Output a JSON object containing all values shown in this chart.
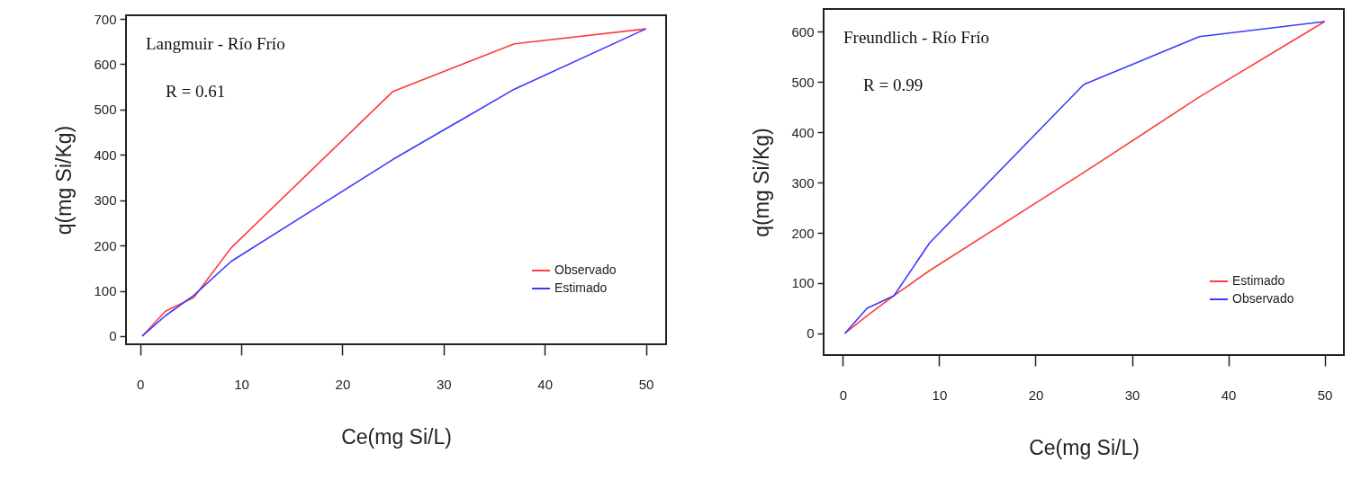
{
  "chart_data": [
    {
      "type": "line",
      "xlabel": "Ce(mg Si/L)",
      "ylabel": "q(mg Si/Kg)",
      "annotations": [
        "Langmuir - Río Frío",
        "R = 0.61"
      ],
      "x": [
        0.2,
        2.5,
        5.3,
        9,
        25,
        37,
        50
      ],
      "series": [
        {
          "name": "Observado",
          "color": "#ff3b3b",
          "values": [
            0,
            55,
            85,
            195,
            540,
            645,
            678
          ]
        },
        {
          "name": "Estimado",
          "color": "#3b3bff",
          "values": [
            0,
            45,
            90,
            165,
            390,
            545,
            678
          ]
        }
      ],
      "xlim": [
        -1.4,
        52
      ],
      "ylim": [
        -18,
        708
      ],
      "xticks": [
        0,
        10,
        20,
        30,
        40,
        50
      ],
      "yticks": [
        0,
        100,
        200,
        300,
        400,
        500,
        600,
        700
      ],
      "legend": "bottom right"
    },
    {
      "type": "line",
      "xlabel": "Ce(mg Si/L)",
      "ylabel": "q(mg Si/Kg)",
      "annotations": [
        "Freundlich - Río Frío",
        "R = 0.99"
      ],
      "x": [
        0.2,
        2.5,
        5.3,
        9,
        25,
        37,
        50
      ],
      "series": [
        {
          "name": "Estimado",
          "color": "#ff3b3b",
          "values": [
            0,
            35,
            75,
            125,
            320,
            470,
            620
          ]
        },
        {
          "name": "Observado",
          "color": "#3b3bff",
          "values": [
            0,
            50,
            75,
            180,
            495,
            590,
            620
          ]
        }
      ],
      "xlim": [
        -2,
        52
      ],
      "ylim": [
        -43,
        645
      ],
      "xticks": [
        0,
        10,
        20,
        30,
        40,
        50
      ],
      "yticks": [
        0,
        100,
        200,
        300,
        400,
        500,
        600
      ],
      "legend": "bottom right"
    }
  ]
}
